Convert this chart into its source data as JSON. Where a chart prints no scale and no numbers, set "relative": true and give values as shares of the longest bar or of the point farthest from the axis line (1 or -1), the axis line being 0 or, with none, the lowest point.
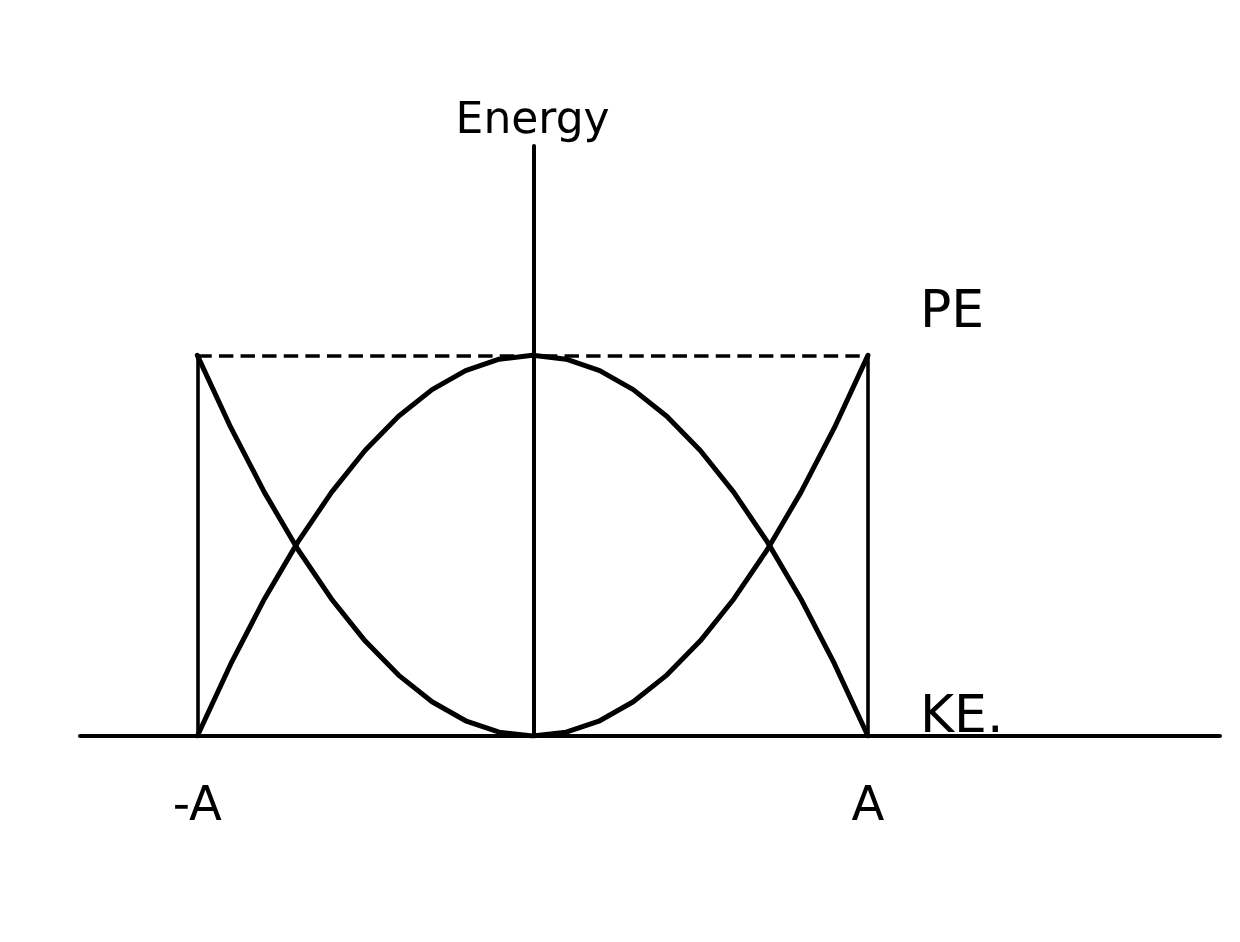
{
  "chart_data": {
    "type": "line",
    "ylabel": "Energy",
    "relative": true,
    "categories": [
      null,
      null,
      null,
      "-A",
      null,
      null,
      null,
      null,
      null,
      null,
      null,
      null,
      null,
      null,
      null,
      null,
      null,
      null,
      null,
      null,
      null,
      null,
      null,
      "A",
      null,
      null,
      null,
      null,
      null,
      null,
      null,
      null,
      null,
      null
    ],
    "series": [
      {
        "name": "PE",
        "color": "#000000",
        "values": [
          null,
          null,
          null,
          1,
          0.81,
          0.64,
          0.49,
          0.36,
          0.25,
          0.16,
          0.09,
          0.04,
          0.01,
          0,
          0.01,
          0.04,
          0.09,
          0.16,
          0.25,
          0.36,
          0.49,
          0.64,
          0.81,
          1,
          null,
          null,
          null,
          null,
          null,
          null,
          null,
          null,
          null,
          null
        ]
      },
      {
        "name": "KE.",
        "color": "#000000",
        "values": [
          null,
          null,
          null,
          0,
          0.19,
          0.36,
          0.51,
          0.64,
          0.75,
          0.84,
          0.91,
          0.96,
          0.99,
          1,
          0.99,
          0.96,
          0.91,
          0.84,
          0.75,
          0.64,
          0.51,
          0.36,
          0.19,
          0,
          null,
          null,
          null,
          null,
          null,
          null,
          null,
          null,
          null,
          null
        ]
      }
    ],
    "ref_lines": [
      {
        "axis": "y",
        "value": 1,
        "line_style": "dashed"
      },
      {
        "axis": "x",
        "value": "-A",
        "line_style": "solid"
      },
      {
        "axis": "x",
        "value": "A",
        "line_style": "solid"
      }
    ],
    "line_style": "solid",
    "marker": "none",
    "grid": false,
    "legend": false
  }
}
